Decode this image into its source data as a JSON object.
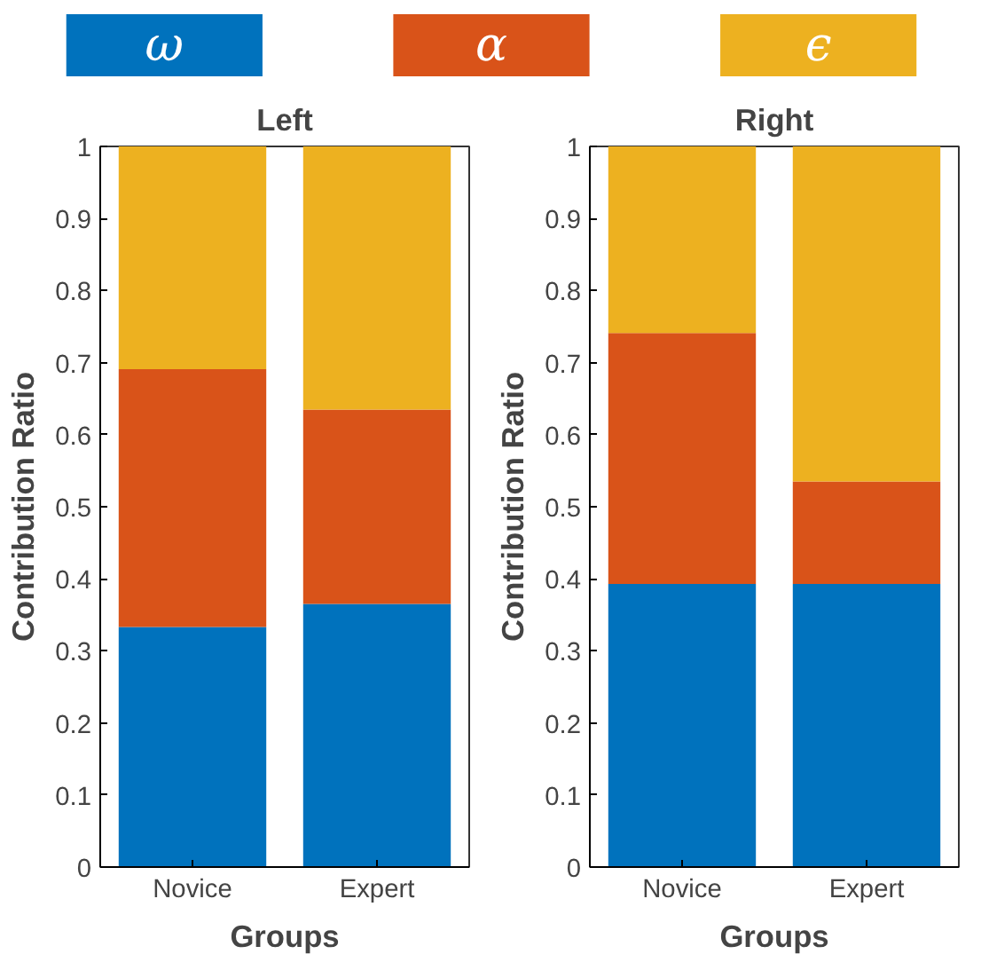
{
  "chart_data": [
    {
      "type": "bar",
      "title": "Left",
      "xlabel": "Groups",
      "ylabel": "Contribution Ratio",
      "categories": [
        "Novice",
        "Expert"
      ],
      "stacked": true,
      "ylim": [
        0,
        1
      ],
      "yticks": [
        0,
        0.1,
        0.2,
        0.3,
        0.4,
        0.5,
        0.6,
        0.7,
        0.8,
        0.9,
        1
      ],
      "legend": "top",
      "grid": false,
      "series": [
        {
          "name": "ω",
          "color": "#0072bd",
          "values": [
            0.333,
            0.365
          ]
        },
        {
          "name": "α",
          "color": "#d95319",
          "values": [
            0.358,
            0.27
          ]
        },
        {
          "name": "ϵ",
          "color": "#edb120",
          "values": [
            0.309,
            0.365
          ]
        }
      ]
    },
    {
      "type": "bar",
      "title": "Right",
      "xlabel": "Groups",
      "ylabel": "Contribution Ratio",
      "categories": [
        "Novice",
        "Expert"
      ],
      "stacked": true,
      "ylim": [
        0,
        1
      ],
      "yticks": [
        0,
        0.1,
        0.2,
        0.3,
        0.4,
        0.5,
        0.6,
        0.7,
        0.8,
        0.9,
        1
      ],
      "grid": false,
      "series": [
        {
          "color": "#0072bd",
          "values": [
            0.393,
            0.393
          ]
        },
        {
          "color": "#d95319",
          "values": [
            0.348,
            0.142
          ]
        },
        {
          "color": "#edb120",
          "values": [
            0.259,
            0.465
          ]
        }
      ]
    }
  ]
}
